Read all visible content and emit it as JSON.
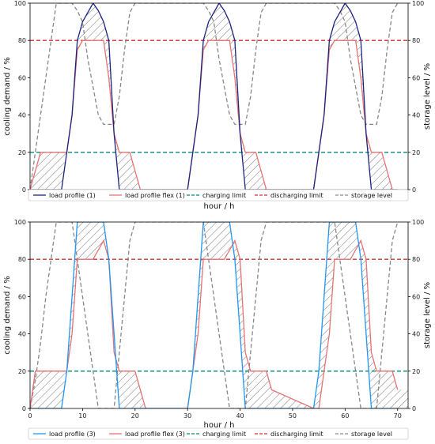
{
  "colors": {
    "load_top": "#1a237e",
    "load_bottom": "#2196f3",
    "flex": "#e57373",
    "charging": "#00897b",
    "discharging": "#d32f2f",
    "storage": "#888888",
    "frame": "#000000"
  },
  "chart_data": [
    {
      "type": "line",
      "xlabel": "hour / h",
      "ylabel": "cooling demand / %",
      "y2label": "storage level / %",
      "xlim": [
        0,
        72
      ],
      "ylim": [
        0,
        100
      ],
      "y2lim": [
        0,
        100
      ],
      "xticks": [
        "0",
        "10",
        "20",
        "30",
        "40",
        "50",
        "60",
        "70"
      ],
      "yticks": [
        "0",
        "20",
        "40",
        "60",
        "80",
        "100"
      ],
      "grid": false,
      "legend_position": "below",
      "series": [
        {
          "name": "load profile (1)",
          "color_key": "load_top",
          "dash": "solid",
          "x": [
            0,
            6,
            7,
            8,
            9,
            10,
            11,
            12,
            13,
            14,
            15,
            16,
            17,
            18,
            19,
            20,
            21,
            22,
            23,
            24,
            25,
            26,
            27,
            28,
            29,
            30,
            31,
            32,
            33,
            34,
            35,
            36,
            37,
            38,
            39,
            40,
            41,
            42,
            43,
            44,
            45,
            46,
            47,
            48,
            49,
            50,
            51,
            52,
            53,
            54,
            55,
            56,
            57,
            58,
            59,
            60,
            61,
            62,
            63,
            64,
            65,
            66,
            67,
            68,
            69,
            70
          ],
          "y": [
            0,
            0,
            20,
            40,
            80,
            90,
            95,
            100,
            96,
            90,
            80,
            30,
            0,
            0,
            0,
            0,
            0,
            0,
            0,
            0,
            0,
            0,
            0,
            0,
            0,
            0,
            20,
            40,
            80,
            90,
            95,
            100,
            96,
            90,
            80,
            30,
            0,
            0,
            0,
            0,
            0,
            0,
            0,
            0,
            0,
            0,
            0,
            0,
            0,
            0,
            20,
            40,
            80,
            90,
            95,
            100,
            96,
            90,
            80,
            30,
            0,
            0,
            0,
            0,
            0,
            0
          ]
        },
        {
          "name": "load profile flex (1)",
          "color_key": "flex",
          "dash": "solid",
          "x": [
            0,
            2,
            6,
            7,
            8,
            9,
            10,
            11,
            12,
            13,
            14,
            15,
            16,
            17,
            18,
            19,
            20,
            21,
            22,
            30,
            31,
            32,
            33,
            34,
            35,
            36,
            37,
            38,
            39,
            40,
            41,
            42,
            43,
            44,
            45,
            46,
            54,
            55,
            56,
            57,
            58,
            59,
            60,
            61,
            62,
            63,
            64,
            65,
            66,
            67,
            68,
            69
          ],
          "y": [
            0,
            20,
            20,
            20,
            40,
            75,
            80,
            80,
            80,
            80,
            80,
            60,
            30,
            20,
            20,
            20,
            10,
            0,
            0,
            0,
            20,
            40,
            75,
            80,
            80,
            80,
            80,
            80,
            60,
            30,
            20,
            20,
            20,
            10,
            0,
            0,
            0,
            20,
            40,
            75,
            80,
            80,
            80,
            80,
            80,
            60,
            30,
            20,
            20,
            20,
            10,
            0
          ]
        },
        {
          "name": "charging limit",
          "color_key": "charging",
          "dash": "dashed",
          "x": [
            0,
            72
          ],
          "y": [
            20,
            20
          ]
        },
        {
          "name": "discharging limit",
          "color_key": "discharging",
          "dash": "dashed",
          "x": [
            0,
            72
          ],
          "y": [
            80,
            80
          ]
        },
        {
          "name": "storage level",
          "color_key": "storage",
          "dash": "dashed",
          "axis": "right",
          "x": [
            0,
            1,
            2,
            3,
            4,
            5,
            6,
            7,
            8,
            9,
            10,
            11,
            12,
            13,
            14,
            15,
            16,
            17,
            18,
            19,
            20,
            21,
            22,
            23,
            24,
            25,
            26,
            27,
            28,
            29,
            30,
            31,
            32,
            33,
            34,
            35,
            36,
            37,
            38,
            39,
            40,
            41,
            42,
            43,
            44,
            45,
            46,
            47,
            48,
            49,
            50,
            51,
            52,
            53,
            54,
            55,
            56,
            57,
            58,
            59,
            60,
            61,
            62,
            63,
            64,
            65,
            66,
            67,
            68,
            69,
            70
          ],
          "y": [
            0,
            20,
            40,
            60,
            80,
            100,
            100,
            100,
            100,
            96,
            90,
            70,
            55,
            40,
            35,
            35,
            35,
            50,
            75,
            95,
            100,
            100,
            100,
            100,
            100,
            100,
            100,
            100,
            100,
            100,
            100,
            100,
            100,
            100,
            96,
            90,
            70,
            55,
            40,
            35,
            35,
            35,
            50,
            75,
            95,
            100,
            100,
            100,
            100,
            100,
            100,
            100,
            100,
            100,
            100,
            100,
            100,
            100,
            100,
            96,
            90,
            70,
            55,
            40,
            35,
            35,
            35,
            50,
            75,
            95,
            100
          ]
        }
      ]
    },
    {
      "type": "line",
      "xlabel": "hour / h",
      "ylabel": "cooling demand / %",
      "y2label": "storage level / %",
      "xlim": [
        0,
        72
      ],
      "ylim": [
        0,
        100
      ],
      "y2lim": [
        0,
        100
      ],
      "xticks": [
        "0",
        "10",
        "20",
        "30",
        "40",
        "50",
        "60",
        "70"
      ],
      "yticks": [
        "0",
        "20",
        "40",
        "60",
        "80",
        "100"
      ],
      "grid": false,
      "legend_position": "below",
      "series": [
        {
          "name": "load profile (3)",
          "color_key": "load_bottom",
          "dash": "solid",
          "x": [
            0,
            6,
            7,
            8,
            9,
            14,
            15,
            16,
            17,
            30,
            31,
            32,
            33,
            38,
            39,
            40,
            41,
            54,
            55,
            56,
            57,
            62,
            63,
            64,
            65,
            70
          ],
          "y": [
            0,
            0,
            20,
            60,
            100,
            100,
            80,
            40,
            0,
            0,
            20,
            60,
            100,
            100,
            80,
            40,
            0,
            0,
            20,
            60,
            100,
            100,
            80,
            40,
            0,
            0
          ]
        },
        {
          "name": "load profile flex (3)",
          "color_key": "flex",
          "dash": "solid",
          "x": [
            0,
            1,
            6,
            7,
            8,
            9,
            10,
            11,
            12,
            13,
            14,
            15,
            16,
            17,
            18,
            19,
            20,
            21,
            22,
            30,
            31,
            32,
            33,
            34,
            35,
            36,
            37,
            38,
            39,
            40,
            41,
            42,
            43,
            44,
            45,
            46,
            54,
            55,
            56,
            57,
            58,
            59,
            60,
            61,
            62,
            63,
            64,
            65,
            66,
            67,
            68,
            69,
            70
          ],
          "y": [
            0,
            20,
            20,
            20,
            40,
            80,
            80,
            80,
            80,
            85,
            90,
            80,
            30,
            20,
            20,
            20,
            20,
            10,
            0,
            0,
            20,
            40,
            80,
            80,
            80,
            80,
            80,
            85,
            90,
            80,
            30,
            20,
            20,
            20,
            20,
            10,
            0,
            0,
            20,
            40,
            80,
            80,
            80,
            80,
            85,
            90,
            80,
            30,
            20,
            20,
            20,
            20,
            10
          ]
        },
        {
          "name": "charging limit",
          "color_key": "charging",
          "dash": "dashed",
          "x": [
            0,
            72
          ],
          "y": [
            20,
            20
          ]
        },
        {
          "name": "discharging limit",
          "color_key": "discharging",
          "dash": "dashed",
          "x": [
            0,
            72
          ],
          "y": [
            80,
            80
          ]
        },
        {
          "name": "storage level",
          "color_key": "storage",
          "dash": "dashed",
          "axis": "right",
          "x": [
            0,
            1,
            2,
            3,
            4,
            5,
            6,
            7,
            8,
            9,
            10,
            11,
            12,
            13,
            14,
            15,
            16,
            17,
            18,
            19,
            20,
            21,
            22,
            23,
            24,
            25,
            26,
            27,
            28,
            29,
            30,
            31,
            32,
            33,
            34,
            35,
            36,
            37,
            38,
            39,
            40,
            41,
            42,
            43,
            44,
            45,
            46,
            47,
            48,
            49,
            50,
            51,
            52,
            53,
            54,
            55,
            56,
            57,
            58,
            59,
            60,
            61,
            62,
            63,
            64,
            65,
            66,
            67,
            68,
            69,
            70
          ],
          "y": [
            0,
            15,
            35,
            60,
            80,
            100,
            100,
            100,
            100,
            80,
            60,
            40,
            20,
            0,
            0,
            0,
            0,
            30,
            60,
            90,
            100,
            100,
            100,
            100,
            100,
            100,
            100,
            100,
            100,
            100,
            100,
            100,
            100,
            100,
            80,
            60,
            40,
            20,
            0,
            0,
            0,
            0,
            30,
            60,
            90,
            100,
            100,
            100,
            100,
            100,
            100,
            100,
            100,
            100,
            100,
            100,
            100,
            100,
            100,
            80,
            60,
            40,
            20,
            0,
            0,
            0,
            0,
            30,
            60,
            90,
            100
          ]
        }
      ]
    }
  ]
}
